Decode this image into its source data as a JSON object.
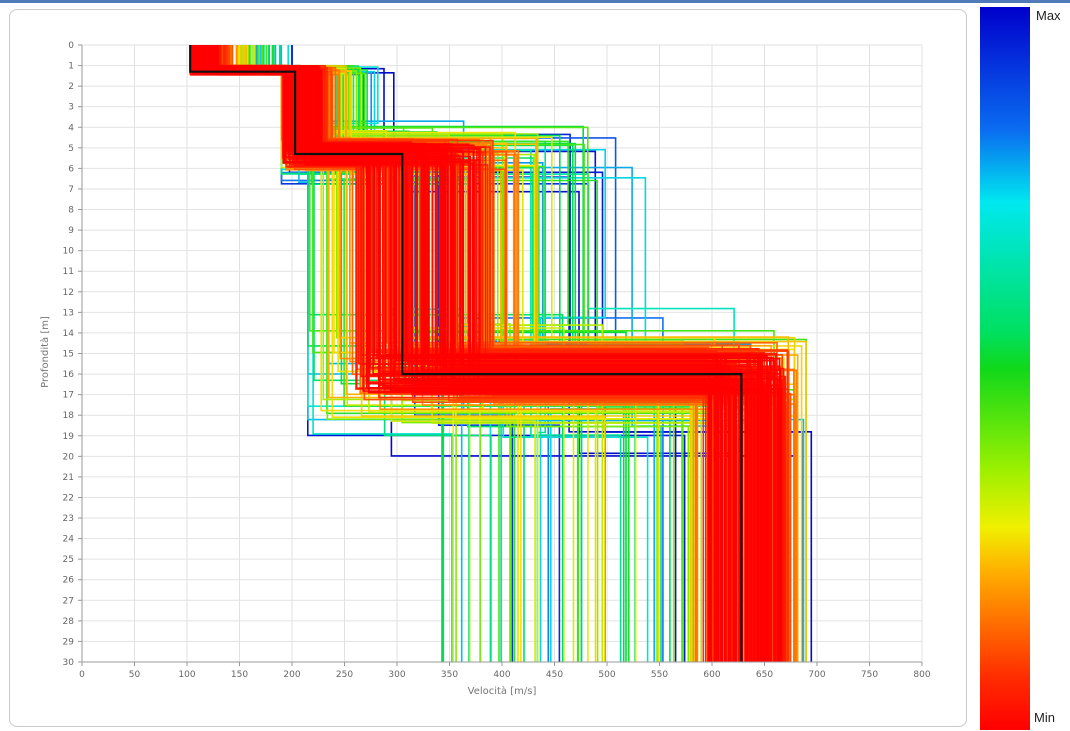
{
  "chart_data": {
    "type": "line",
    "title": "",
    "xlabel": "Velocità [m/s]",
    "ylabel": "Profondità [m]",
    "xlim": [
      0,
      800
    ],
    "ylim": [
      30,
      0
    ],
    "x_ticks": [
      "0",
      "50",
      "100",
      "150",
      "200",
      "250",
      "300",
      "350",
      "400",
      "450",
      "500",
      "550",
      "600",
      "650",
      "700",
      "750",
      "800"
    ],
    "y_ticks": [
      "0",
      "1",
      "2",
      "3",
      "4",
      "5",
      "6",
      "7",
      "8",
      "9",
      "10",
      "11",
      "12",
      "13",
      "14",
      "15",
      "16",
      "17",
      "18",
      "19",
      "20",
      "21",
      "22",
      "23",
      "24",
      "25",
      "26",
      "27",
      "28",
      "29",
      "30"
    ],
    "grid": true,
    "colorbar": {
      "max_label": "Max",
      "min_label": "Min"
    },
    "colors": {
      "best": "#111111",
      "min": "#ff0000",
      "max": "#0000cc"
    },
    "best_model": {
      "name": "",
      "layers": [
        {
          "top": 0,
          "bottom": 1.3,
          "velocity": 103
        },
        {
          "top": 1.3,
          "bottom": 5.3,
          "velocity": 203
        },
        {
          "top": 5.3,
          "bottom": 16.0,
          "velocity": 305
        },
        {
          "top": 16.0,
          "bottom": 30,
          "velocity": 628
        }
      ]
    },
    "model_ensemble": {
      "description_hidden": true,
      "layer1_velocity_range": [
        100,
        200
      ],
      "layer2_velocity_range": [
        190,
        320
      ],
      "layer3_velocity_range": [
        215,
        550
      ],
      "layer4_velocity_range": [
        330,
        700
      ],
      "interface1_depth_range": [
        1.0,
        1.5
      ],
      "interface2_depth_range": [
        3.5,
        7.0
      ],
      "interface3_depth_range": [
        13,
        20
      ]
    }
  }
}
